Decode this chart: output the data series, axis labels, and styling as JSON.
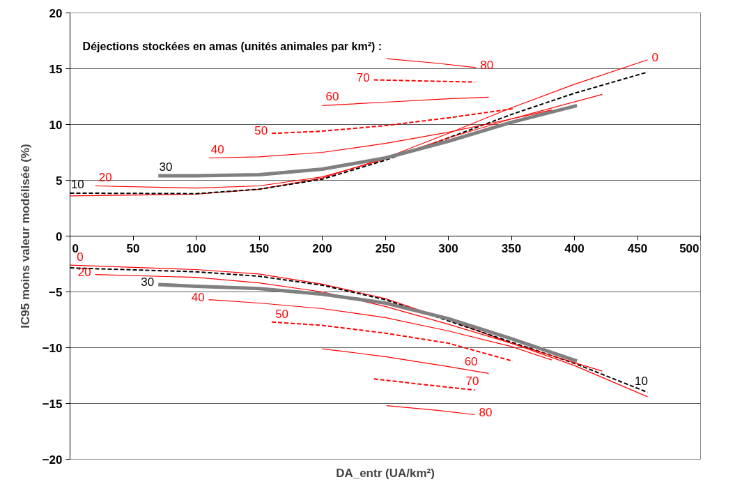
{
  "chart_data": {
    "type": "line",
    "xlabel": "DA_entr (UA/km²)",
    "ylabel": "IC95 moins valeur modélisée (%)",
    "xlim": [
      0,
      500
    ],
    "xticks": [
      0,
      50,
      100,
      150,
      200,
      250,
      300,
      350,
      400,
      450,
      500
    ],
    "ylim": [
      -20,
      20
    ],
    "yticks": [
      -20,
      -15,
      -10,
      -5,
      0,
      5,
      10,
      15,
      20
    ],
    "grid": "y",
    "series": [
      {
        "color": "#ff0000",
        "line_style": "solid",
        "x": [
          0,
          100,
          150,
          200,
          250,
          300,
          350,
          400,
          458
        ],
        "values": [
          3.6,
          3.75,
          4.2,
          5.2,
          7.0,
          9.2,
          11.5,
          13.6,
          15.8
        ]
      },
      {
        "color": "#000000",
        "line_style": "dashed",
        "x": [
          0,
          100,
          150,
          200,
          250,
          300,
          350,
          400,
          458
        ],
        "values": [
          3.85,
          3.8,
          4.2,
          5.1,
          6.8,
          8.8,
          10.9,
          12.8,
          14.7
        ]
      },
      {
        "color": "#ff0000",
        "line_style": "solid",
        "x": [
          20,
          100,
          150,
          200,
          250,
          300,
          350,
          422
        ],
        "values": [
          4.5,
          4.3,
          4.5,
          5.3,
          6.9,
          8.8,
          10.5,
          12.7
        ]
      },
      {
        "color": "#808080",
        "line_style": "solid",
        "x": [
          70,
          100,
          150,
          200,
          250,
          300,
          350,
          402
        ],
        "values": [
          5.4,
          5.4,
          5.5,
          6.0,
          7.0,
          8.5,
          10.2,
          11.7
        ]
      },
      {
        "color": "#ff0000",
        "line_style": "solid",
        "x": [
          110,
          150,
          200,
          250,
          300,
          350,
          382
        ],
        "values": [
          7.0,
          7.1,
          7.5,
          8.3,
          9.3,
          10.5,
          11.3
        ]
      },
      {
        "color": "#ff0000",
        "line_style": "dashed",
        "x": [
          160,
          200,
          250,
          300,
          351
        ],
        "values": [
          9.2,
          9.4,
          9.9,
          10.6,
          11.4
        ]
      },
      {
        "color": "#ff0000",
        "line_style": "solid",
        "x": [
          200,
          250,
          300,
          332
        ],
        "values": [
          11.7,
          12.0,
          12.3,
          12.45
        ]
      },
      {
        "color": "#ff0000",
        "line_style": "dashed",
        "x": [
          241,
          280,
          321
        ],
        "values": [
          14.0,
          13.9,
          13.8
        ]
      },
      {
        "color": "#ff0000",
        "line_style": "solid",
        "x": [
          251,
          290,
          322
        ],
        "values": [
          15.9,
          15.5,
          15.1
        ]
      },
      {
        "color": "#ff0000",
        "line_style": "solid",
        "x": [
          0,
          100,
          150,
          200,
          250,
          300,
          350,
          400,
          458
        ],
        "values": [
          -2.6,
          -3.0,
          -3.4,
          -4.3,
          -5.6,
          -7.5,
          -9.6,
          -11.6,
          -14.4
        ]
      },
      {
        "color": "#000000",
        "line_style": "dashed",
        "x": [
          0,
          100,
          150,
          200,
          250,
          300,
          350,
          400,
          458
        ],
        "values": [
          -2.85,
          -3.2,
          -3.6,
          -4.4,
          -5.7,
          -7.6,
          -9.5,
          -11.4,
          -14.0
        ]
      },
      {
        "color": "#ff0000",
        "line_style": "solid",
        "x": [
          20,
          100,
          150,
          200,
          250,
          300,
          350,
          422
        ],
        "values": [
          -3.45,
          -3.7,
          -4.2,
          -5.0,
          -6.3,
          -7.9,
          -9.6,
          -12.1
        ]
      },
      {
        "color": "#808080",
        "line_style": "solid",
        "x": [
          70,
          100,
          150,
          200,
          250,
          300,
          350,
          402
        ],
        "values": [
          -4.35,
          -4.5,
          -4.7,
          -5.2,
          -6.0,
          -7.4,
          -9.2,
          -11.2
        ]
      },
      {
        "color": "#ff0000",
        "line_style": "solid",
        "x": [
          110,
          150,
          200,
          250,
          300,
          350,
          382
        ],
        "values": [
          -5.7,
          -6.0,
          -6.5,
          -7.3,
          -8.5,
          -9.9,
          -11.1
        ]
      },
      {
        "color": "#ff0000",
        "line_style": "dashed",
        "x": [
          160,
          200,
          250,
          300,
          351
        ],
        "values": [
          -7.7,
          -8.0,
          -8.7,
          -9.6,
          -11.2
        ]
      },
      {
        "color": "#ff0000",
        "line_style": "solid",
        "x": [
          200,
          250,
          300,
          332
        ],
        "values": [
          -10.1,
          -10.8,
          -11.7,
          -12.3
        ]
      },
      {
        "color": "#ff0000",
        "line_style": "dashed",
        "x": [
          241,
          280,
          321
        ],
        "values": [
          -12.8,
          -13.3,
          -13.8
        ]
      },
      {
        "color": "#ff0000",
        "line_style": "solid",
        "x": [
          251,
          290,
          321
        ],
        "values": [
          -15.2,
          -15.6,
          -16.0
        ]
      }
    ],
    "annotations": [
      "Déjections stockées en amas (unités animales par km²) :",
      {
        "text": "80",
        "x": 322,
        "y": 15.1
      },
      {
        "text": "0",
        "x": 458,
        "y": 15.8
      },
      {
        "text": "70",
        "x": 241,
        "y": 14.0
      },
      {
        "text": "60",
        "x": 208,
        "y": 11.72
      },
      {
        "text": "50",
        "x": 160,
        "y": 9.2
      },
      {
        "text": "40",
        "x": 117,
        "y": 7.0
      },
      {
        "text": "30",
        "x": 76,
        "y": 5.4
      },
      {
        "text": "20",
        "x": 28,
        "y": 4.48
      },
      {
        "text": "10",
        "x": 6,
        "y": 3.85
      },
      {
        "text": "0",
        "x": 8,
        "y": -2.63
      },
      {
        "text": "20",
        "x": 20,
        "y": -3.45
      },
      {
        "text": "30",
        "x": 70,
        "y": -4.35
      },
      {
        "text": "40",
        "x": 110,
        "y": -5.7
      },
      {
        "text": "50",
        "x": 168,
        "y": -7.76
      },
      {
        "text": "60",
        "x": 318,
        "y": -12.04
      },
      {
        "text": "70",
        "x": 319,
        "y": -13.78
      },
      {
        "text": "80",
        "x": 321,
        "y": -16.0
      },
      {
        "text": "10",
        "x": 453,
        "y": -13.78
      }
    ]
  }
}
